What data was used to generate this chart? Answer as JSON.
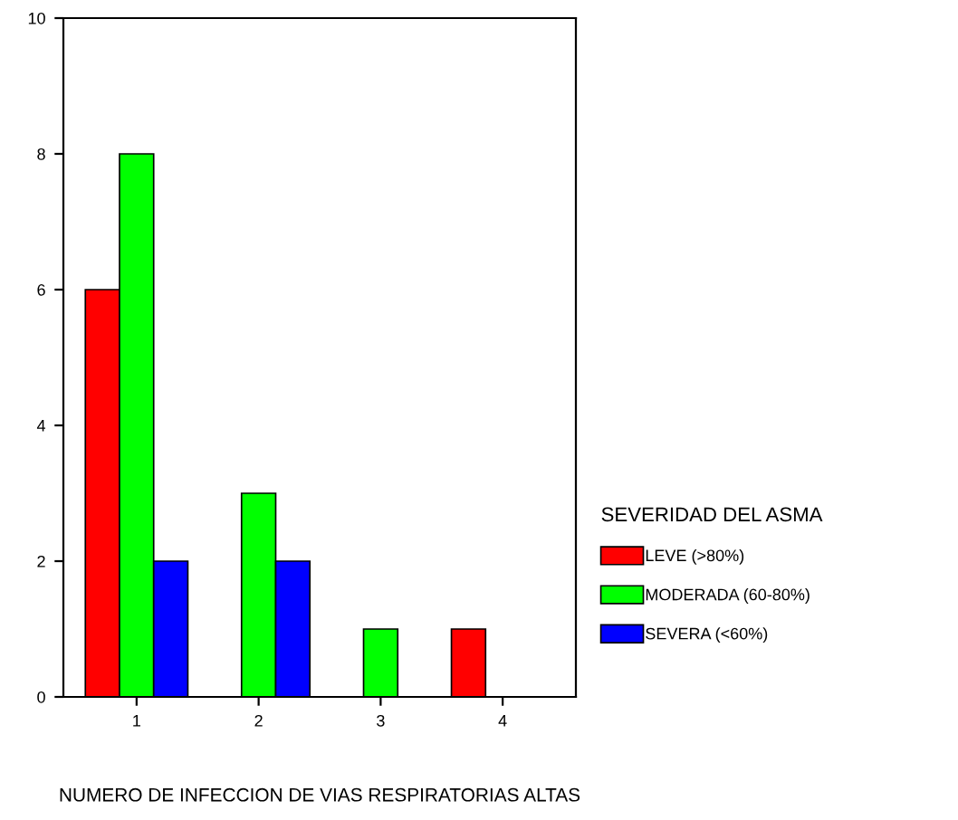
{
  "chart_data": {
    "type": "bar",
    "xlabel": "NUMERO DE INFECCION DE VIAS RESPIRATORIAS ALTAS",
    "legend_title": "SEVERIDAD DEL ASMA",
    "categories": [
      "1",
      "2",
      "3",
      "4"
    ],
    "series": [
      {
        "name": "LEVE (>80%)",
        "color": "#ff0000",
        "values": [
          6,
          null,
          null,
          1
        ]
      },
      {
        "name": "MODERADA (60-80%)",
        "color": "#00ff00",
        "values": [
          8,
          3,
          1,
          null
        ]
      },
      {
        "name": "SEVERA (<60%)",
        "color": "#0000ff",
        "values": [
          2,
          2,
          null,
          null
        ]
      }
    ],
    "ylim": [
      0,
      10
    ],
    "yticks": [
      0,
      2,
      4,
      6,
      8,
      10
    ],
    "grid": false,
    "legend": "right"
  }
}
